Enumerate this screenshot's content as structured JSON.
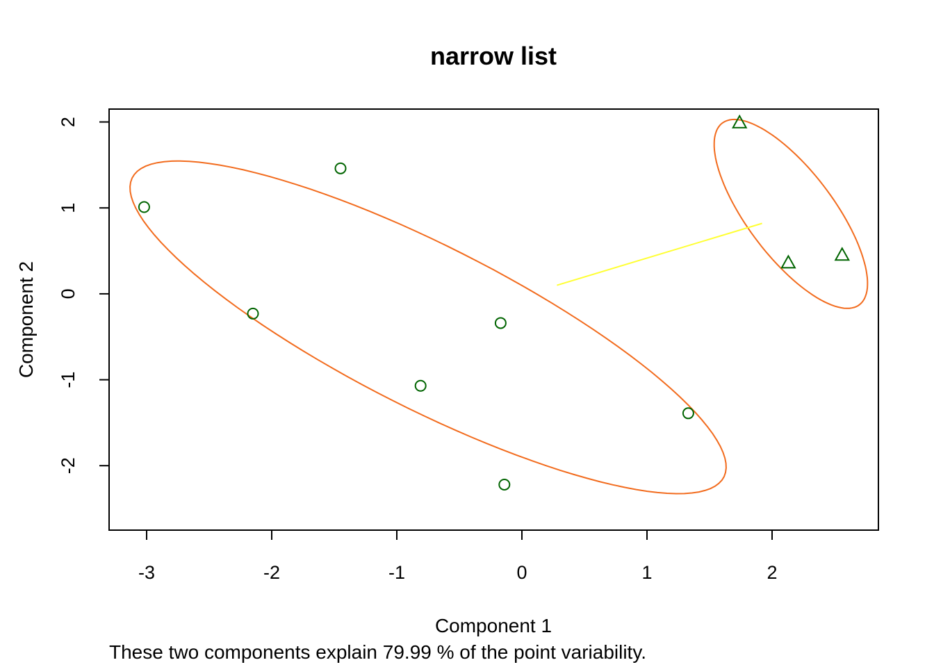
{
  "chart_data": {
    "type": "scatter",
    "title": "narrow list",
    "xlabel": "Component 1",
    "ylabel": "Component 2",
    "subtitle": "These two components explain 79.99 % of the point variability.",
    "xlim": [
      -3.3,
      2.85
    ],
    "ylim": [
      -2.75,
      2.15
    ],
    "x_ticks": [
      -3,
      -2,
      -1,
      0,
      1,
      2
    ],
    "y_ticks": [
      -2,
      -1,
      0,
      1,
      2
    ],
    "colors": {
      "points": "#006400",
      "ellipse": "#f26b1d",
      "connector": "#ffff33",
      "axes": "#000000"
    },
    "clusters": [
      {
        "marker": "circle",
        "points": [
          {
            "x": -3.02,
            "y": 1.01
          },
          {
            "x": -1.45,
            "y": 1.46
          },
          {
            "x": -2.15,
            "y": -0.23
          },
          {
            "x": -0.81,
            "y": -1.07
          },
          {
            "x": -0.17,
            "y": -0.34
          },
          {
            "x": 1.33,
            "y": -1.39
          },
          {
            "x": -0.14,
            "y": -2.22
          }
        ],
        "ellipse": {
          "cx": -0.75,
          "cy": -0.39,
          "semi_major": 2.95,
          "semi_minor": 0.85,
          "angle_deg": -38
        }
      },
      {
        "marker": "triangle",
        "points": [
          {
            "x": 1.74,
            "y": 1.99
          },
          {
            "x": 2.13,
            "y": 0.36
          },
          {
            "x": 2.56,
            "y": 0.45
          }
        ],
        "ellipse": {
          "cx": 2.15,
          "cy": 0.93,
          "semi_major": 1.2,
          "semi_minor": 0.38,
          "angle_deg": -65
        }
      }
    ],
    "connector": {
      "from": {
        "x": 0.28,
        "y": 0.1
      },
      "to": {
        "x": 1.92,
        "y": 0.82
      }
    }
  }
}
